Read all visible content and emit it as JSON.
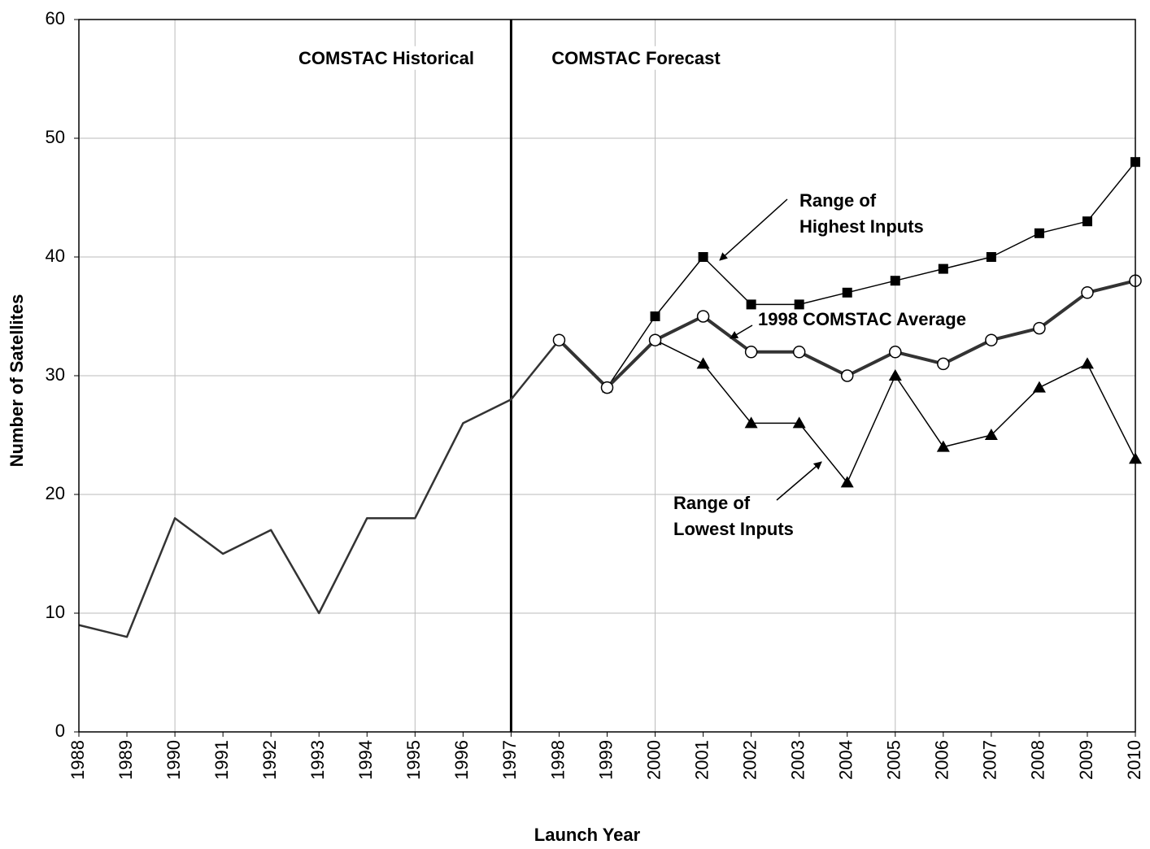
{
  "chart_data": {
    "type": "line",
    "x": [
      1988,
      1989,
      1990,
      1991,
      1992,
      1993,
      1994,
      1995,
      1996,
      1997,
      1998,
      1999,
      2000,
      2001,
      2002,
      2003,
      2004,
      2005,
      2006,
      2007,
      2008,
      2009,
      2010
    ],
    "series": [
      {
        "color": "#333333",
        "width": 2.5,
        "marker": null,
        "values": [
          9,
          8,
          18,
          15,
          17,
          10,
          18,
          18,
          26,
          28,
          33,
          null,
          null,
          null,
          null,
          null,
          null,
          null,
          null,
          null,
          null,
          null,
          null
        ]
      },
      {
        "color": "#000000",
        "width": 1.5,
        "marker": "square",
        "values": [
          null,
          null,
          null,
          null,
          null,
          null,
          null,
          null,
          null,
          null,
          null,
          29,
          35,
          40,
          36,
          36,
          37,
          38,
          39,
          40,
          42,
          43,
          48
        ]
      },
      {
        "color": "#000000",
        "width": 1.5,
        "marker": "triangle",
        "values": [
          null,
          null,
          null,
          null,
          null,
          null,
          null,
          null,
          null,
          null,
          null,
          null,
          33,
          31,
          26,
          26,
          21,
          30,
          24,
          25,
          29,
          31,
          23
        ]
      },
      {
        "color": "#333333",
        "width": 4,
        "marker": "circle",
        "values": [
          null,
          null,
          null,
          null,
          null,
          null,
          null,
          null,
          null,
          null,
          33,
          29,
          33,
          35,
          32,
          32,
          30,
          32,
          31,
          33,
          34,
          37,
          38
        ]
      }
    ],
    "xlim": [
      1988,
      2010
    ],
    "xticks": [
      1988,
      1989,
      1990,
      1991,
      1992,
      1993,
      1994,
      1995,
      1996,
      1997,
      1998,
      1999,
      2000,
      2001,
      2002,
      2003,
      2004,
      2005,
      2006,
      2007,
      2008,
      2009,
      2010
    ],
    "xgrid": [
      1990,
      1995,
      2000,
      2005
    ],
    "ylim": [
      0,
      60
    ],
    "yticks": [
      0,
      10,
      20,
      30,
      40,
      50,
      60
    ],
    "grid": true,
    "divider_x": 1997,
    "x_label": "Launch Year",
    "y_label": "Number of Satellites",
    "annotations": [
      [
        "COMSTAC Historical"
      ],
      [
        "COMSTAC Forecast"
      ],
      [
        "Range of",
        "Highest Inputs"
      ],
      [
        "1998 COMSTAC Average"
      ],
      [
        "Range of",
        "Lowest Inputs"
      ]
    ]
  }
}
